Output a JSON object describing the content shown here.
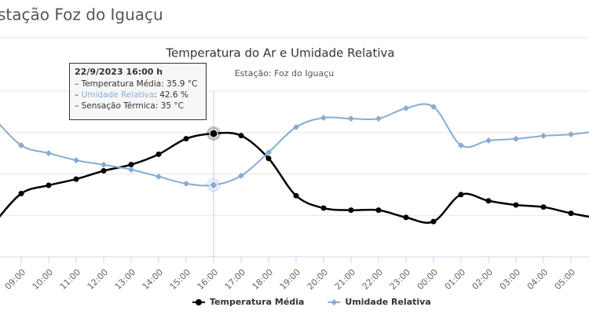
{
  "page_header": "stação Foz do Iguaçu",
  "chart_data": {
    "type": "line",
    "title": "Temperatura do Ar e Umidade Relativa",
    "subtitle": "Estação: Foz do Iguaçu",
    "categories": [
      null,
      "09:00",
      "10:00",
      "11:00",
      "12:00",
      "13:00",
      "14:00",
      "15:00",
      "16:00",
      "17:00",
      "18:00",
      "19:00",
      "20:00",
      "21:00",
      "22:00",
      "23:00",
      "00:00",
      "01:00",
      "02:00",
      "03:00",
      "04:00",
      "05:00",
      null
    ],
    "series": [
      {
        "name": "Temperatura Média",
        "color": "#000000",
        "marker": "circle",
        "values": [
          27.2,
          30.1,
          30.9,
          31.5,
          32.3,
          32.9,
          33.9,
          35.4,
          35.9,
          35.7,
          33.5,
          29.9,
          28.7,
          28.5,
          28.5,
          27.8,
          27.4,
          30.0,
          29.4,
          29.0,
          28.8,
          28.2,
          27.7
        ]
      },
      {
        "name": "Umidade Relativa",
        "color": "#87acd3",
        "marker": "diamond",
        "axis": "y2",
        "values": [
          75.1,
          61.8,
          58.0,
          54.6,
          52.4,
          50.1,
          46.7,
          43.3,
          42.6,
          47.1,
          58.4,
          70.6,
          75.1,
          74.7,
          74.7,
          79.7,
          80.4,
          61.8,
          64.1,
          64.9,
          66.4,
          67.1,
          68.7
        ]
      }
    ],
    "ylim": [
      24,
      40
    ],
    "yticks": [
      24,
      28,
      32,
      36,
      40
    ],
    "y2lim": [
      8,
      88
    ],
    "grid": true,
    "legend": "bottom",
    "tooltip": {
      "index": 8,
      "header": "22/9/2023 16:00 h",
      "lines": [
        [
          "– Temperatura Média: 35.9 °C"
        ],
        [
          "– ",
          "Umidade Relativa",
          ": 42.6 %"
        ],
        [
          "– Sensação Térmica: 35 °C"
        ]
      ]
    }
  }
}
